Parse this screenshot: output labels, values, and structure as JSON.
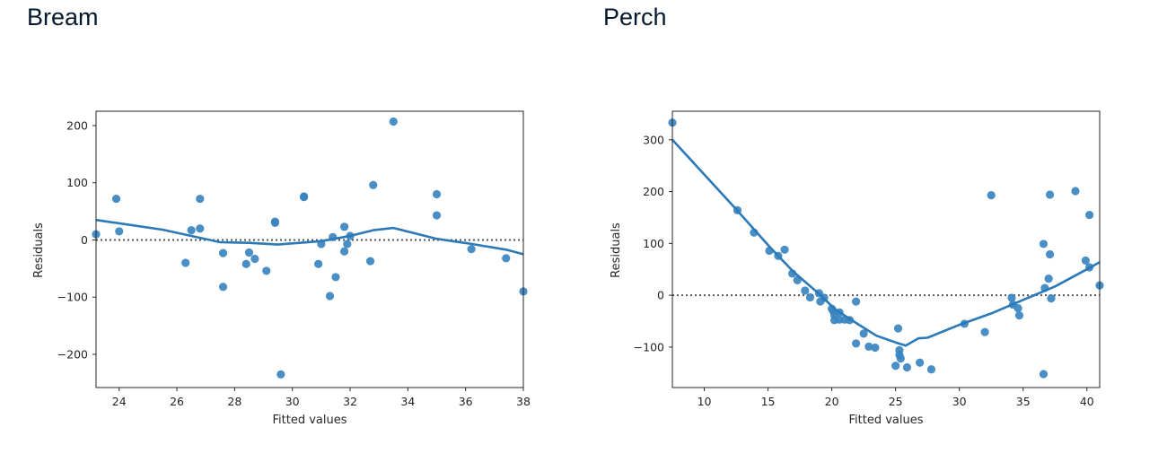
{
  "colors": {
    "point": "#3a84bf",
    "line": "#2b79b8",
    "zero": "#555555",
    "frame": "#262626",
    "title": "#05192d"
  },
  "charts": [
    {
      "title": "Bream",
      "chart_data": {
        "type": "scatter",
        "title": "Bream",
        "xlabel": "Fitted values",
        "ylabel": "Residuals",
        "xlim": [
          23.2,
          38
        ],
        "ylim": [
          -258,
          225
        ],
        "xticks": [
          24,
          26,
          28,
          30,
          32,
          34,
          36,
          38
        ],
        "yticks": [
          200,
          100,
          0,
          -100,
          -200
        ],
        "ytick_labels": [
          "200",
          "100",
          "0",
          "−100",
          "−200"
        ],
        "grid": false,
        "zero_line": "dotted",
        "points": [
          [
            23.2,
            10
          ],
          [
            23.9,
            72
          ],
          [
            24.0,
            15
          ],
          [
            26.3,
            -40
          ],
          [
            26.5,
            17
          ],
          [
            26.8,
            72
          ],
          [
            26.8,
            20
          ],
          [
            27.6,
            -82
          ],
          [
            27.6,
            -23
          ],
          [
            28.4,
            -42
          ],
          [
            28.5,
            -22
          ],
          [
            28.7,
            -33
          ],
          [
            29.1,
            -54
          ],
          [
            29.4,
            32
          ],
          [
            29.4,
            30
          ],
          [
            29.6,
            -235
          ],
          [
            30.4,
            76
          ],
          [
            30.4,
            75
          ],
          [
            30.9,
            -42
          ],
          [
            31.0,
            -7
          ],
          [
            31.3,
            -98
          ],
          [
            31.4,
            5
          ],
          [
            31.5,
            -65
          ],
          [
            31.8,
            23
          ],
          [
            31.8,
            -20
          ],
          [
            31.9,
            -7
          ],
          [
            32.0,
            7
          ],
          [
            32.7,
            -37
          ],
          [
            32.8,
            96
          ],
          [
            33.5,
            207
          ],
          [
            35.0,
            80
          ],
          [
            35.0,
            43
          ],
          [
            36.2,
            -16
          ],
          [
            37.4,
            -32
          ],
          [
            38.0,
            -90
          ]
        ],
        "trend": [
          [
            23.2,
            35
          ],
          [
            25.5,
            18
          ],
          [
            26.5,
            7
          ],
          [
            27.5,
            -4
          ],
          [
            28.5,
            -5
          ],
          [
            29.5,
            -8
          ],
          [
            31.0,
            -2
          ],
          [
            32.0,
            7
          ],
          [
            32.8,
            17
          ],
          [
            33.5,
            21
          ],
          [
            35.0,
            2
          ],
          [
            36.2,
            -7
          ],
          [
            37.4,
            -17
          ],
          [
            38.0,
            -25
          ]
        ]
      }
    },
    {
      "title": "Perch",
      "chart_data": {
        "type": "scatter",
        "title": "Perch",
        "xlabel": "Fitted values",
        "ylabel": "Residuals",
        "xlim": [
          7.5,
          41
        ],
        "ylim": [
          -178,
          355
        ],
        "xticks": [
          10,
          15,
          20,
          25,
          30,
          35,
          40
        ],
        "yticks": [
          300,
          200,
          100,
          0,
          -100
        ],
        "ytick_labels": [
          "300",
          "200",
          "100",
          "0",
          "−100"
        ],
        "grid": false,
        "zero_line": "dotted",
        "points": [
          [
            7.5,
            333
          ],
          [
            12.6,
            164
          ],
          [
            13.9,
            121
          ],
          [
            15.1,
            86
          ],
          [
            15.8,
            76
          ],
          [
            16.3,
            88
          ],
          [
            16.9,
            42
          ],
          [
            17.3,
            29
          ],
          [
            17.9,
            9
          ],
          [
            18.3,
            -4
          ],
          [
            19.0,
            4
          ],
          [
            19.1,
            -12
          ],
          [
            19.4,
            -5
          ],
          [
            20.0,
            -26
          ],
          [
            20.1,
            -30
          ],
          [
            20.2,
            -38
          ],
          [
            20.2,
            -48
          ],
          [
            20.6,
            -33
          ],
          [
            20.6,
            -47
          ],
          [
            21.0,
            -47
          ],
          [
            21.4,
            -48
          ],
          [
            21.9,
            -12
          ],
          [
            21.9,
            -93
          ],
          [
            22.5,
            -74
          ],
          [
            22.9,
            -99
          ],
          [
            23.4,
            -101
          ],
          [
            25.0,
            -136
          ],
          [
            25.2,
            -64
          ],
          [
            25.3,
            -106
          ],
          [
            25.3,
            -115
          ],
          [
            25.4,
            -122
          ],
          [
            25.9,
            -139
          ],
          [
            26.9,
            -130
          ],
          [
            27.8,
            -143
          ],
          [
            30.4,
            -55
          ],
          [
            32.0,
            -71
          ],
          [
            32.5,
            193
          ],
          [
            34.1,
            -5
          ],
          [
            34.2,
            -18
          ],
          [
            34.6,
            -25
          ],
          [
            34.7,
            -39
          ],
          [
            36.6,
            99
          ],
          [
            36.6,
            -152
          ],
          [
            36.7,
            14
          ],
          [
            37.0,
            32
          ],
          [
            37.1,
            194
          ],
          [
            37.1,
            79
          ],
          [
            37.2,
            -6
          ],
          [
            39.1,
            201
          ],
          [
            39.9,
            67
          ],
          [
            40.2,
            54
          ],
          [
            40.2,
            155
          ],
          [
            41.0,
            19
          ]
        ],
        "trend": [
          [
            7.5,
            300
          ],
          [
            12.6,
            163
          ],
          [
            15.1,
            94
          ],
          [
            17.0,
            45
          ],
          [
            18.9,
            5
          ],
          [
            20.3,
            -28
          ],
          [
            22.0,
            -55
          ],
          [
            23.5,
            -78
          ],
          [
            25.0,
            -91
          ],
          [
            25.8,
            -97
          ],
          [
            26.8,
            -83
          ],
          [
            27.5,
            -82
          ],
          [
            30.0,
            -57
          ],
          [
            32.5,
            -35
          ],
          [
            35.0,
            -9
          ],
          [
            37.5,
            17
          ],
          [
            40.0,
            50
          ],
          [
            41.0,
            64
          ]
        ]
      }
    }
  ]
}
